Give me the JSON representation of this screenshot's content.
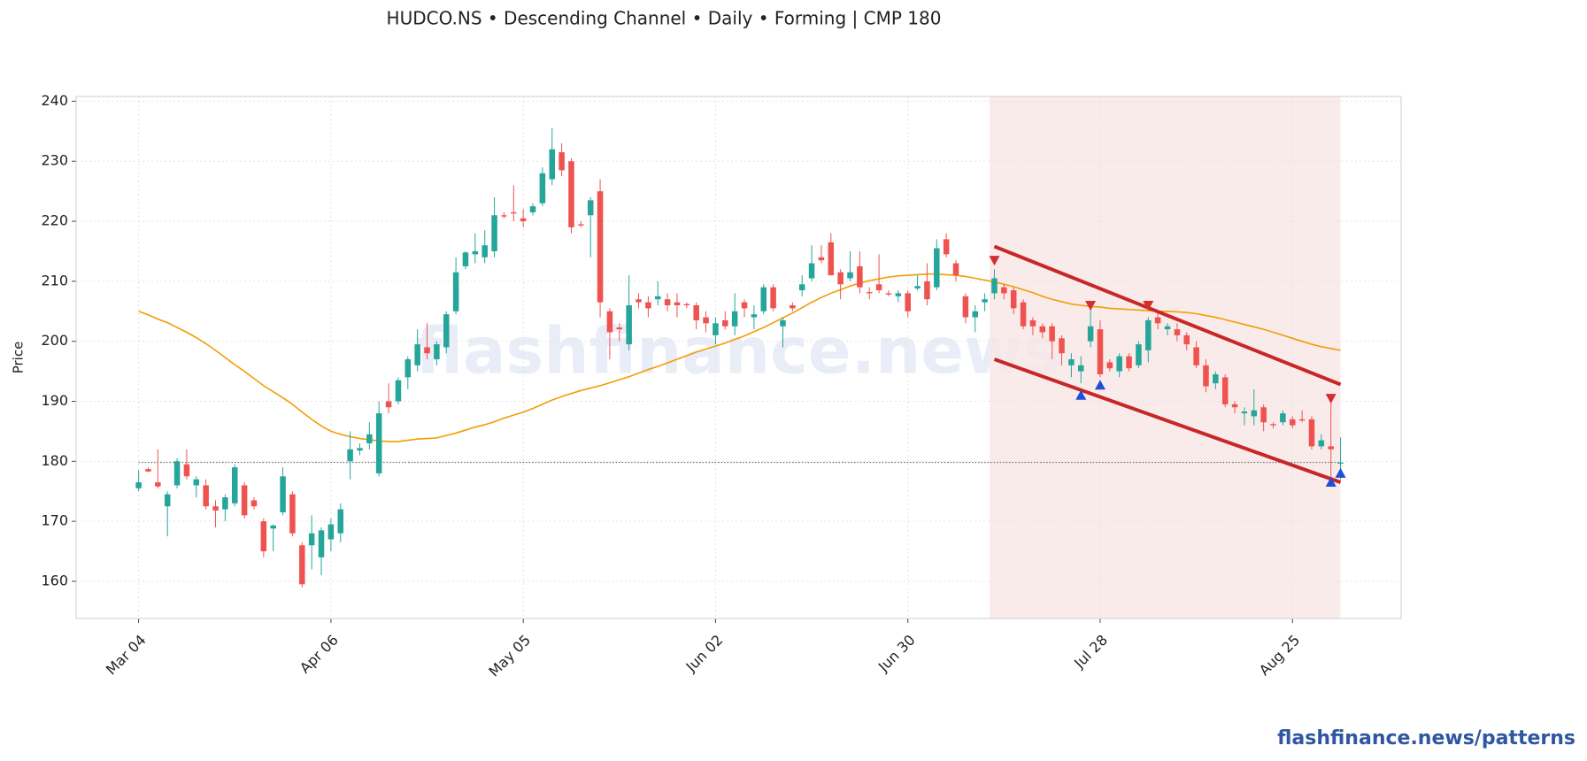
{
  "chart_data": {
    "type": "candlestick",
    "title": "HUDCO.NS  •  Descending Channel  •  Daily  •  Forming  |  CMP 180",
    "ylabel": "Price",
    "watermark": "flashfinance.news",
    "footer": "flashfinance.news/patterns",
    "categories": [
      "Mar 04",
      null,
      null,
      null,
      null,
      null,
      null,
      null,
      null,
      null,
      null,
      null,
      null,
      null,
      null,
      null,
      null,
      null,
      null,
      null,
      "Apr 06",
      null,
      null,
      null,
      null,
      null,
      null,
      null,
      null,
      null,
      null,
      null,
      null,
      null,
      null,
      null,
      null,
      null,
      null,
      null,
      "May 05",
      null,
      null,
      null,
      null,
      null,
      null,
      null,
      null,
      null,
      null,
      null,
      null,
      null,
      null,
      null,
      null,
      null,
      null,
      null,
      "Jun 02",
      null,
      null,
      null,
      null,
      null,
      null,
      null,
      null,
      null,
      null,
      null,
      null,
      null,
      null,
      null,
      null,
      null,
      null,
      null,
      "Jun 30",
      null,
      null,
      null,
      null,
      null,
      null,
      null,
      null,
      null,
      null,
      null,
      null,
      null,
      null,
      null,
      null,
      null,
      null,
      null,
      "Jul 28",
      null,
      null,
      null,
      null,
      null,
      null,
      null,
      null,
      null,
      null,
      null,
      null,
      null,
      null,
      null,
      null,
      null,
      null,
      null,
      "Aug 25",
      null,
      null,
      null,
      null,
      null
    ],
    "open": [
      175.5,
      178.7,
      176.5,
      172.5,
      176,
      179.5,
      176,
      176,
      172.5,
      172,
      173,
      176,
      173.5,
      170,
      168.8,
      171.5,
      174.5,
      166,
      166,
      164,
      167,
      168,
      180,
      181.8,
      183,
      178,
      190,
      190,
      194,
      196,
      199,
      197,
      199,
      205,
      212.5,
      214.5,
      214,
      215,
      221,
      221.5,
      220.5,
      221.5,
      223,
      227,
      231.5,
      230,
      219.5,
      221,
      225,
      205,
      202.3,
      199.5,
      207,
      206.5,
      207,
      207,
      206.5,
      206.2,
      206,
      204,
      201,
      203.5,
      202.5,
      206.5,
      204,
      205,
      209,
      202.5,
      206,
      208.5,
      210.5,
      214,
      216.5,
      211.5,
      210.5,
      212.5,
      208.2,
      209.5,
      208,
      207.5,
      208,
      208.8,
      210,
      209,
      217,
      213,
      207.5,
      204,
      206.5,
      208,
      209,
      208.5,
      206.5,
      203.5,
      202.5,
      202.5,
      200.5,
      196,
      195,
      200,
      202,
      196.5,
      195,
      197.5,
      196,
      198.5,
      204,
      202,
      202,
      201,
      199,
      196,
      193,
      194,
      189.5,
      188,
      187.5,
      189,
      186.2,
      186.5,
      187,
      187,
      187,
      182.5,
      182.5,
      179.6
    ],
    "high": [
      178.5,
      179,
      182,
      175,
      180.5,
      182,
      177.5,
      177,
      173.5,
      174.5,
      179.5,
      176.5,
      174,
      170.5,
      169.5,
      179,
      175,
      166.5,
      171,
      169,
      170.5,
      173,
      185,
      183,
      186.5,
      190,
      193,
      194,
      197.5,
      202,
      203,
      200,
      205,
      214,
      215,
      218,
      218.5,
      224,
      221.5,
      226,
      222,
      223,
      229,
      235.5,
      233,
      230.5,
      220,
      224,
      227,
      205.5,
      203,
      211,
      208,
      207.5,
      210,
      208,
      208,
      206.5,
      206.5,
      205,
      204,
      205,
      208,
      207,
      206,
      209.5,
      209.5,
      204,
      206.5,
      211,
      216,
      216,
      218,
      212,
      215,
      215,
      209,
      214.5,
      208.5,
      208.5,
      208.5,
      211,
      213,
      217,
      218,
      213.5,
      208,
      206,
      208,
      212,
      209.5,
      209,
      207,
      204,
      203,
      203,
      201,
      198,
      197.5,
      206,
      203.5,
      197,
      198,
      198,
      200,
      204,
      205,
      203,
      203,
      201.5,
      200,
      197,
      195,
      194.5,
      190,
      189,
      192,
      189.5,
      186.5,
      188.5,
      187.5,
      188.5,
      187.5,
      184.5,
      190,
      184
    ],
    "low": [
      175,
      178.2,
      175.5,
      167.5,
      175.5,
      177,
      174,
      172,
      169,
      170,
      172.5,
      170.5,
      172,
      164,
      165,
      171,
      167.5,
      159,
      162,
      161,
      165,
      166.5,
      177,
      181,
      182,
      177.5,
      188,
      189.5,
      192,
      195,
      197,
      196,
      198,
      204.5,
      212,
      213,
      213,
      214,
      220.5,
      220,
      219,
      221,
      222.5,
      226,
      227.5,
      218,
      219,
      214,
      204,
      197,
      200,
      198.5,
      205.5,
      204,
      206,
      205,
      204,
      205.5,
      202,
      201.5,
      199.5,
      202,
      201,
      204,
      202,
      204.5,
      205,
      199,
      205,
      207.5,
      210,
      213,
      211,
      207,
      210,
      208,
      207,
      208,
      207.5,
      206.5,
      204,
      208.5,
      206,
      208.5,
      214,
      210,
      203,
      201.5,
      205,
      207,
      207,
      204.5,
      202,
      201,
      200.5,
      197,
      196,
      194,
      193,
      199,
      194,
      195,
      194,
      195,
      195.5,
      196.5,
      202,
      201,
      200,
      198.5,
      195.5,
      191.5,
      192,
      189,
      188,
      186,
      186,
      185,
      185.5,
      186,
      185.5,
      186.5,
      182,
      182,
      176.5,
      177
    ],
    "close": [
      176.5,
      178.3,
      175.8,
      174.5,
      180,
      177.5,
      177,
      172.5,
      171.8,
      174,
      179,
      171,
      172.5,
      165,
      169.3,
      177.5,
      168,
      159.5,
      168,
      168.5,
      169.5,
      172,
      182,
      182.2,
      184.5,
      188,
      189,
      193.5,
      197,
      199.5,
      198,
      199.5,
      204.5,
      211.5,
      214.8,
      215,
      216,
      221,
      220.8,
      221.3,
      220,
      222.5,
      228,
      232,
      228.5,
      219,
      219.3,
      223.5,
      206.5,
      201.5,
      202,
      206,
      206.5,
      205.5,
      207.5,
      206,
      206,
      206,
      203.5,
      203,
      203,
      202.5,
      205,
      205.5,
      204.5,
      209,
      205.5,
      203.5,
      205.5,
      209.5,
      213,
      213.5,
      211,
      209.5,
      211.5,
      209,
      208,
      208.5,
      207.8,
      208,
      205,
      209.2,
      207,
      215.5,
      214.5,
      211,
      204,
      205,
      207,
      210.5,
      208,
      205.5,
      202.5,
      202.5,
      201.5,
      200,
      198,
      197,
      196,
      202.5,
      194.5,
      195.5,
      197.5,
      195.5,
      199.5,
      203.5,
      203,
      202.5,
      201,
      199.5,
      196,
      192.5,
      194.5,
      189.5,
      189,
      188.3,
      188.5,
      186.5,
      186,
      188,
      186,
      186.8,
      182.5,
      183.5,
      182,
      179.8
    ],
    "up_color": "#26a69a",
    "down_color": "#ef5350",
    "moving_average": {
      "color": "#f59c00",
      "values": [
        205,
        204.4,
        203.7,
        203.1,
        202.3,
        201.5,
        200.6,
        199.6,
        198.5,
        197.3,
        196.1,
        195,
        193.8,
        192.6,
        191.6,
        190.6,
        189.5,
        188.2,
        187,
        185.9,
        185,
        184.5,
        184.1,
        183.8,
        183.6,
        183.4,
        183.3,
        183.3,
        183.5,
        183.7,
        183.8,
        183.9,
        184.3,
        184.7,
        185.2,
        185.7,
        186.1,
        186.6,
        187.2,
        187.7,
        188.2,
        188.8,
        189.5,
        190.2,
        190.8,
        191.3,
        191.8,
        192.2,
        192.6,
        193.1,
        193.6,
        194.1,
        194.7,
        195.3,
        195.8,
        196.4,
        197,
        197.6,
        198.2,
        198.7,
        199.2,
        199.7,
        200.3,
        200.9,
        201.6,
        202.3,
        203.1,
        203.9,
        204.7,
        205.6,
        206.5,
        207.3,
        208,
        208.6,
        209.2,
        209.7,
        210.1,
        210.4,
        210.7,
        210.9,
        211,
        211.1,
        211.2,
        211.2,
        211.1,
        211,
        210.8,
        210.5,
        210.2,
        209.9,
        209.5,
        209.1,
        208.6,
        208.1,
        207.5,
        207,
        206.6,
        206.2,
        206,
        205.8,
        205.7,
        205.5,
        205.4,
        205.3,
        205.2,
        205.1,
        205,
        205,
        204.9,
        204.8,
        204.6,
        204.3,
        204,
        203.6,
        203.2,
        202.8,
        202.4,
        202,
        201.5,
        201,
        200.5,
        200,
        199.5,
        199.1,
        198.8,
        198.5
      ]
    },
    "reference_line": 179.8,
    "channel": {
      "color": "#c62828",
      "x": [
        89,
        125
      ],
      "upper": [
        215.8,
        192.8
      ],
      "lower": [
        197,
        176.5
      ]
    },
    "pattern_region": [
      89,
      125
    ],
    "peaks": {
      "color": "#d32f2f",
      "x": [
        89,
        99,
        105,
        124
      ],
      "values": [
        213.5,
        206,
        206,
        190.5
      ]
    },
    "troughs": {
      "color": "#1e4fd8",
      "x": [
        98,
        100,
        124,
        125
      ],
      "values": [
        191,
        192.7,
        176.5,
        178
      ]
    },
    "xlim": [
      -6.5,
      131.3
    ],
    "ylim": [
      153.8,
      240.8
    ],
    "yticks": [
      160,
      170,
      180,
      190,
      200,
      210,
      220,
      230,
      240
    ],
    "grid": true
  }
}
